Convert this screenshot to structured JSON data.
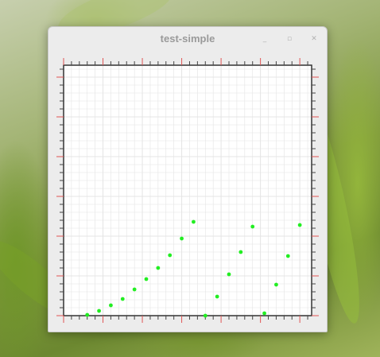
{
  "window": {
    "title": "test-simple",
    "controls": {
      "minimize_icon": "minimize-icon",
      "maximize_icon": "maximize-icon",
      "close_icon": "close-icon"
    }
  },
  "colors": {
    "axis_major_tick": "#e05555",
    "axis_minor_tick": "#444444",
    "grid": "#e4e4e4",
    "point": "#22ee22",
    "plot_background": "#ffffff"
  },
  "chart_data": {
    "type": "scatter",
    "grid": true,
    "xlim": [
      0,
      31.5
    ],
    "ylim": [
      0,
      31.5
    ],
    "x": [
      3,
      4.5,
      6,
      7.5,
      9,
      10.5,
      12,
      13.5,
      15,
      16.5,
      18,
      19.5,
      21,
      22.5,
      24,
      25.5,
      27,
      28.5,
      30
    ],
    "y": [
      0.1,
      0.6,
      1.3,
      2.1,
      3.3,
      4.6,
      6.0,
      7.6,
      9.7,
      11.8,
      0.0,
      2.4,
      5.2,
      8.0,
      11.2,
      0.3,
      3.9,
      7.5,
      11.4
    ]
  }
}
